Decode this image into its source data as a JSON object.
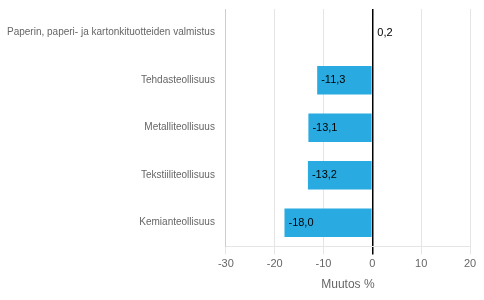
{
  "chart_data": {
    "type": "bar",
    "orientation": "horizontal",
    "categories": [
      "Kemianteollisuus",
      "Tekstiiliteollisuus",
      "Metalliteollisuus",
      "Tehdasteollisuus",
      "Paperin, paperi- ja kartonkituotteiden valmistus"
    ],
    "values": [
      -18.0,
      -13.2,
      -13.1,
      -11.3,
      0.2
    ],
    "value_labels": [
      "-18,0",
      "-13,2",
      "-13,1",
      "-11,3",
      "0,2"
    ],
    "data_labels": true,
    "color": "#29ABE2",
    "xlabel": "Muutos %",
    "xlim": [
      -30,
      20
    ],
    "xticks": [
      -30,
      -20,
      -10,
      0,
      10,
      20
    ],
    "grid": true
  }
}
